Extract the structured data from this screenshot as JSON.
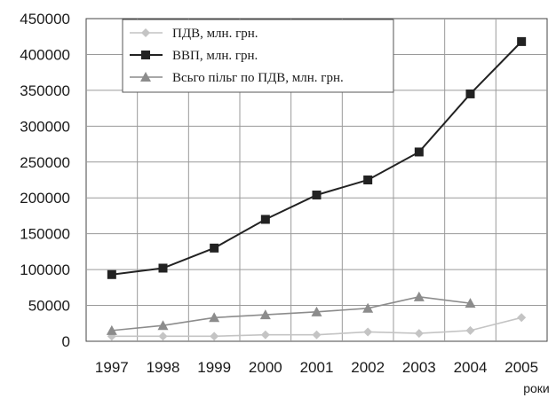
{
  "chart_data": {
    "type": "line",
    "x": [
      "1997",
      "1998",
      "1999",
      "2000",
      "2001",
      "2002",
      "2003",
      "2004",
      "2005"
    ],
    "series": [
      {
        "name": "ПДВ, млн. грн.",
        "marker": "diamond",
        "color": "#c4c4c4",
        "values": [
          7000,
          7000,
          7000,
          9000,
          9000,
          13000,
          11000,
          15000,
          33000
        ]
      },
      {
        "name": "ВВП, млн. грн.",
        "marker": "square",
        "color": "#222222",
        "values": [
          93000,
          102000,
          130000,
          170000,
          204000,
          225000,
          264000,
          345000,
          418000
        ]
      },
      {
        "name": "Всьго пільг по ПДВ, млн. грн.",
        "marker": "triangle",
        "color": "#8c8c8c",
        "values": [
          null,
          null,
          null,
          null,
          null,
          null,
          62000,
          53000,
          null
        ]
      }
    ],
    "triangle_series_full": [
      15000,
      22000,
      33000,
      37000,
      41000,
      46000,
      62000,
      53000,
      null
    ],
    "ylim": [
      0,
      450000
    ],
    "yticks": [
      "0",
      "50000",
      "100000",
      "150000",
      "200000",
      "250000",
      "300000",
      "350000",
      "400000",
      "450000"
    ],
    "xlabel": "роки",
    "ylabel": "",
    "grid": true,
    "legend_position": "top-left"
  }
}
